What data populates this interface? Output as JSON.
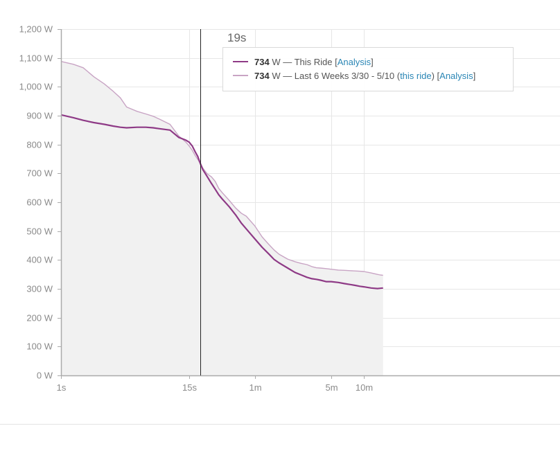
{
  "colors": {
    "this_ride": "#8e3a86",
    "last_6_weeks": "#c8a4c4",
    "area_fill": "#f1f1f1",
    "link": "#2a86b5",
    "grid": "#e6e6e6",
    "axis": "#aaaaaa"
  },
  "hover": {
    "time_label": "19s",
    "this_ride": {
      "watts": "734",
      "unit_text": " W — This Ride [",
      "analysis_link": "Analysis",
      "close": "]"
    },
    "last_6_weeks": {
      "watts": "734",
      "unit_text": " W — Last 6 Weeks ",
      "date_range": "3/30 - 5/10",
      "paren_open": " (",
      "this_ride_link": "this ride",
      "paren_close": ") [",
      "analysis_link": "Analysis",
      "close": "]"
    }
  },
  "chart_data": {
    "type": "line",
    "title": "",
    "xlabel": "",
    "ylabel": "",
    "x_scale": "log",
    "x_unit": "seconds",
    "y_unit": "W",
    "ylim": [
      0,
      1200
    ],
    "yticks": [
      {
        "value": 0,
        "label": "0 W"
      },
      {
        "value": 100,
        "label": "100 W"
      },
      {
        "value": 200,
        "label": "200 W"
      },
      {
        "value": 300,
        "label": "300 W"
      },
      {
        "value": 400,
        "label": "400 W"
      },
      {
        "value": 500,
        "label": "500 W"
      },
      {
        "value": 600,
        "label": "600 W"
      },
      {
        "value": 700,
        "label": "700 W"
      },
      {
        "value": 800,
        "label": "800 W"
      },
      {
        "value": 900,
        "label": "900 W"
      },
      {
        "value": 1000,
        "label": "1,000 W"
      },
      {
        "value": 1100,
        "label": "1,100 W"
      },
      {
        "value": 1200,
        "label": "1,200 W"
      }
    ],
    "xticks": [
      {
        "value": 1,
        "label": "1s"
      },
      {
        "value": 15,
        "label": "15s"
      },
      {
        "value": 60,
        "label": "1m"
      },
      {
        "value": 300,
        "label": "5m"
      },
      {
        "value": 600,
        "label": "10m"
      }
    ],
    "hover_x": 19,
    "grid": true,
    "series": [
      {
        "name": "This Ride",
        "x": [
          1,
          1.3,
          1.6,
          2,
          2.5,
          3,
          3.5,
          4,
          5,
          6,
          7,
          8,
          10,
          12,
          14,
          15,
          16,
          17,
          18,
          19,
          20,
          22,
          24,
          26,
          28,
          30,
          35,
          40,
          45,
          50,
          60,
          70,
          80,
          90,
          100,
          120,
          140,
          160,
          180,
          200,
          220,
          240,
          270,
          300,
          350,
          400,
          450,
          500,
          550,
          600,
          700,
          800,
          850,
          900
        ],
        "y": [
          903,
          893,
          884,
          876,
          870,
          864,
          860,
          858,
          860,
          860,
          858,
          855,
          850,
          825,
          815,
          808,
          795,
          775,
          758,
          734,
          713,
          688,
          665,
          645,
          626,
          612,
          584,
          556,
          528,
          508,
          473,
          444,
          422,
          402,
          390,
          372,
          357,
          348,
          340,
          335,
          333,
          330,
          325,
          325,
          322,
          318,
          315,
          312,
          309,
          307,
          303,
          301,
          302,
          303
        ]
      },
      {
        "name": "Last 6 Weeks",
        "x": [
          1,
          1.3,
          1.6,
          2,
          2.5,
          3,
          3.5,
          4,
          5,
          6,
          7,
          8,
          10,
          12,
          14,
          15,
          16,
          17,
          18,
          19,
          20,
          22,
          24,
          26,
          28,
          30,
          35,
          40,
          45,
          50,
          60,
          70,
          80,
          90,
          100,
          120,
          140,
          160,
          180,
          200,
          220,
          240,
          270,
          300,
          350,
          400,
          450,
          500,
          550,
          600,
          700,
          800,
          850,
          900
        ],
        "y": [
          1088,
          1078,
          1066,
          1035,
          1010,
          985,
          962,
          930,
          915,
          906,
          898,
          888,
          870,
          830,
          808,
          795,
          780,
          762,
          748,
          734,
          718,
          698,
          688,
          672,
          648,
          634,
          606,
          580,
          562,
          552,
          518,
          480,
          455,
          435,
          420,
          403,
          394,
          388,
          384,
          377,
          373,
          372,
          370,
          368,
          365,
          364,
          363,
          362,
          361,
          360,
          355,
          350,
          348,
          347
        ]
      }
    ]
  }
}
